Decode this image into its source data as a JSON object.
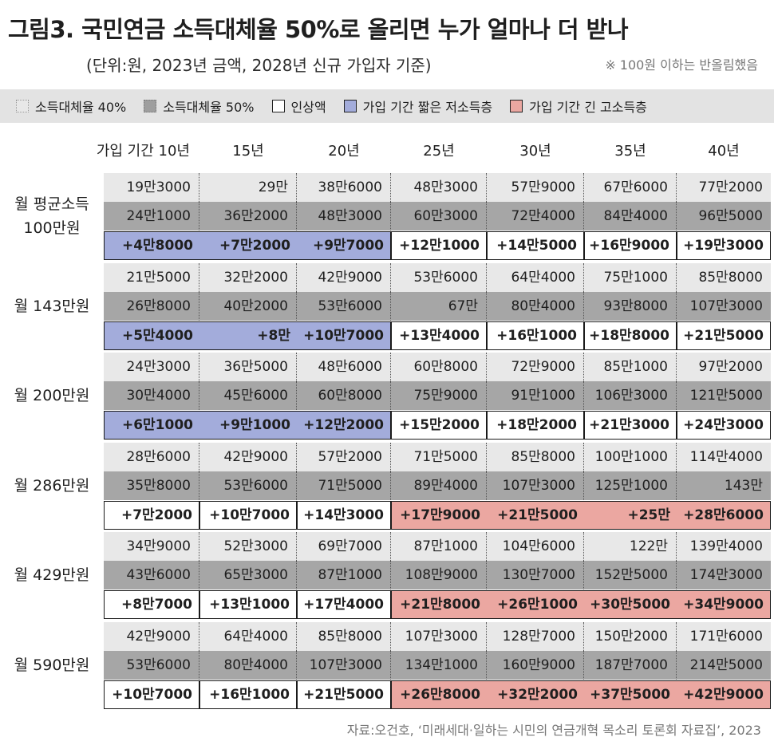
{
  "title": "그림3. 국민연금 소득대체율 50%로 올리면 누가 얼마나 더 받나",
  "subtitle": "(단위:원, 2023년 금액, 2028년 신규 가입자 기준)",
  "note": "※ 100원 이하는 반올림했음",
  "legend": {
    "r40": "소득대체율 40%",
    "r50": "소득대체율 50%",
    "inc": "인상액",
    "low": "가입 기간 짧은 저소득층",
    "high": "가입 기간 긴 고소득층"
  },
  "colors": {
    "r40": "#e8e8e8",
    "r50": "#a6a6a6",
    "low": "#a3acdb",
    "high": "#eba7a1"
  },
  "source": "자료:오건호, ‘미래세대·일하는 시민의 연금개혁 목소리 토론회 자료집’, 2023",
  "chart_data": {
    "type": "table",
    "header_label": "가입 기간",
    "columns": [
      "10년",
      "15년",
      "20년",
      "25년",
      "30년",
      "35년",
      "40년"
    ],
    "groups": [
      {
        "label_lines": [
          "월 평균소득",
          "100만원"
        ],
        "r40": [
          "19만3000",
          "29만",
          "38만6000",
          "48만3000",
          "57만9000",
          "67만6000",
          "77만2000"
        ],
        "r50": [
          "24만1000",
          "36만2000",
          "48만3000",
          "60만3000",
          "72만4000",
          "84만4000",
          "96만5000"
        ],
        "inc": [
          "+4만8000",
          "+7만2000",
          "+9만7000",
          "+12만1000",
          "+14만5000",
          "+16만9000",
          "+19만3000"
        ],
        "highlight": [
          "low",
          "low",
          "low",
          "plain",
          "plain",
          "plain",
          "plain"
        ]
      },
      {
        "label_lines": [
          "월 143만원"
        ],
        "r40": [
          "21만5000",
          "32만2000",
          "42만9000",
          "53만6000",
          "64만4000",
          "75만1000",
          "85만8000"
        ],
        "r50": [
          "26만8000",
          "40만2000",
          "53만6000",
          "67만",
          "80만4000",
          "93만8000",
          "107만3000"
        ],
        "inc": [
          "+5만4000",
          "+8만",
          "+10만7000",
          "+13만4000",
          "+16만1000",
          "+18만8000",
          "+21만5000"
        ],
        "highlight": [
          "low",
          "low",
          "low",
          "plain",
          "plain",
          "plain",
          "plain"
        ]
      },
      {
        "label_lines": [
          "월 200만원"
        ],
        "r40": [
          "24만3000",
          "36만5000",
          "48만6000",
          "60만8000",
          "72만9000",
          "85만1000",
          "97만2000"
        ],
        "r50": [
          "30만4000",
          "45만6000",
          "60만8000",
          "75만9000",
          "91만1000",
          "106만3000",
          "121만5000"
        ],
        "inc": [
          "+6만1000",
          "+9만1000",
          "+12만2000",
          "+15만2000",
          "+18만2000",
          "+21만3000",
          "+24만3000"
        ],
        "highlight": [
          "low",
          "low",
          "low",
          "plain",
          "plain",
          "plain",
          "plain"
        ]
      },
      {
        "label_lines": [
          "월 286만원"
        ],
        "r40": [
          "28만6000",
          "42만9000",
          "57만2000",
          "71만5000",
          "85만8000",
          "100만1000",
          "114만4000"
        ],
        "r50": [
          "35만8000",
          "53만6000",
          "71만5000",
          "89만4000",
          "107만3000",
          "125만1000",
          "143만"
        ],
        "inc": [
          "+7만2000",
          "+10만7000",
          "+14만3000",
          "+17만9000",
          "+21만5000",
          "+25만",
          "+28만6000"
        ],
        "highlight": [
          "plain",
          "plain",
          "plain",
          "high",
          "high",
          "high",
          "high"
        ]
      },
      {
        "label_lines": [
          "월 429만원"
        ],
        "r40": [
          "34만9000",
          "52만3000",
          "69만7000",
          "87만1000",
          "104만6000",
          "122만",
          "139만4000"
        ],
        "r50": [
          "43만6000",
          "65만3000",
          "87만1000",
          "108만9000",
          "130만7000",
          "152만5000",
          "174만3000"
        ],
        "inc": [
          "+8만7000",
          "+13만1000",
          "+17만4000",
          "+21만8000",
          "+26만1000",
          "+30만5000",
          "+34만9000"
        ],
        "highlight": [
          "plain",
          "plain",
          "plain",
          "high",
          "high",
          "high",
          "high"
        ]
      },
      {
        "label_lines": [
          "월 590만원"
        ],
        "r40": [
          "42만9000",
          "64만4000",
          "85만8000",
          "107만3000",
          "128만7000",
          "150만2000",
          "171만6000"
        ],
        "r50": [
          "53만6000",
          "80만4000",
          "107만3000",
          "134만1000",
          "160만9000",
          "187만7000",
          "214만5000"
        ],
        "inc": [
          "+10만7000",
          "+16만1000",
          "+21만5000",
          "+26만8000",
          "+32만2000",
          "+37만5000",
          "+42만9000"
        ],
        "highlight": [
          "plain",
          "plain",
          "plain",
          "high",
          "high",
          "high",
          "high"
        ]
      }
    ]
  }
}
